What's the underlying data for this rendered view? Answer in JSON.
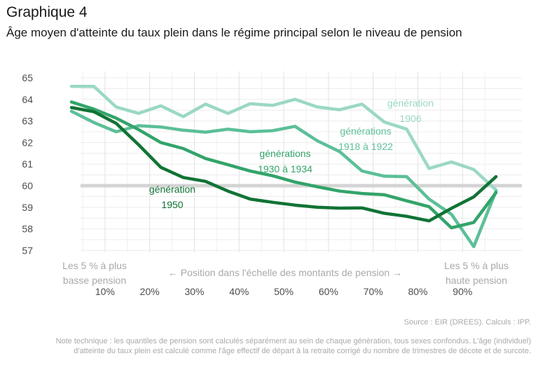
{
  "header": {
    "graph_label": "Graphique 4",
    "title": "Âge moyen d'atteinte du taux plein dans le régime principal selon le niveau de pension"
  },
  "chart_data": {
    "type": "line",
    "x": [
      2.5,
      7.5,
      12.5,
      17.5,
      22.5,
      27.5,
      32.5,
      37.5,
      42.5,
      47.5,
      52.5,
      57.5,
      62.5,
      67.5,
      72.5,
      77.5,
      82.5,
      87.5,
      92.5,
      97.5
    ],
    "x_ticks": [
      "10%",
      "20%",
      "30%",
      "40%",
      "50%",
      "60%",
      "70%",
      "80%",
      "90%"
    ],
    "x_tick_values": [
      10,
      20,
      30,
      40,
      50,
      60,
      70,
      80,
      90
    ],
    "y_ticks": [
      "57",
      "58",
      "59",
      "60",
      "61",
      "62",
      "63",
      "64",
      "65"
    ],
    "ylim": [
      56.9,
      65.3
    ],
    "xlim": [
      0,
      100
    ],
    "grid": true,
    "reference_line": {
      "y": 60,
      "color": "#d4d4d4"
    },
    "series": [
      {
        "name": "génération 1906",
        "label_lines": [
          "génération",
          "1906"
        ],
        "color": "#9ad8c5",
        "values": [
          64.6,
          64.6,
          63.65,
          63.35,
          63.7,
          63.2,
          63.78,
          63.35,
          63.8,
          63.72,
          64.0,
          63.65,
          63.52,
          63.78,
          62.95,
          62.62,
          60.8,
          61.1,
          60.75,
          59.8
        ]
      },
      {
        "name": "générations 1918 à 1922",
        "label_lines": [
          "générations",
          "1918 à 1922"
        ],
        "color": "#5cbf98",
        "values": [
          63.45,
          62.93,
          62.5,
          62.78,
          62.72,
          62.57,
          62.48,
          62.62,
          62.5,
          62.55,
          62.75,
          62.08,
          61.58,
          60.68,
          60.44,
          60.42,
          59.38,
          58.68,
          57.18,
          59.75
        ]
      },
      {
        "name": "générations 1930 à 1934",
        "label_lines": [
          "générations",
          "1930 à 1934"
        ],
        "color": "#33a46a",
        "values": [
          63.88,
          63.55,
          63.13,
          62.6,
          62.0,
          61.72,
          61.26,
          60.97,
          60.68,
          60.46,
          60.17,
          59.95,
          59.75,
          59.64,
          59.58,
          59.3,
          59.03,
          58.05,
          58.3,
          59.68
        ]
      },
      {
        "name": "génération 1950",
        "label_lines": [
          "génération",
          "1950"
        ],
        "color": "#117335",
        "values": [
          63.62,
          63.43,
          62.89,
          61.9,
          60.85,
          60.38,
          60.2,
          59.75,
          59.38,
          59.23,
          59.1,
          59.0,
          58.96,
          58.97,
          58.72,
          58.58,
          58.37,
          58.95,
          59.48,
          60.42
        ]
      }
    ],
    "axis_annotations": {
      "left": [
        "Les 5 % à plus",
        "basse pension"
      ],
      "center": "← Position dans l'échelle des montants de pension →",
      "right": [
        "Les 5 % à plus",
        "haute pension"
      ]
    }
  },
  "footer": {
    "source": "Source : EIR (DREES). Calculs : IPP.",
    "note": "Note technique : les quantiles de pension sont calculés séparément au sein de chaque génération, tous sexes confondus. L'âge (individuel) d'atteinte du taux plein est calculé comme l'âge effectif de départ à la retraite corrigé du nombre de trimestres de décote et de surcote."
  }
}
